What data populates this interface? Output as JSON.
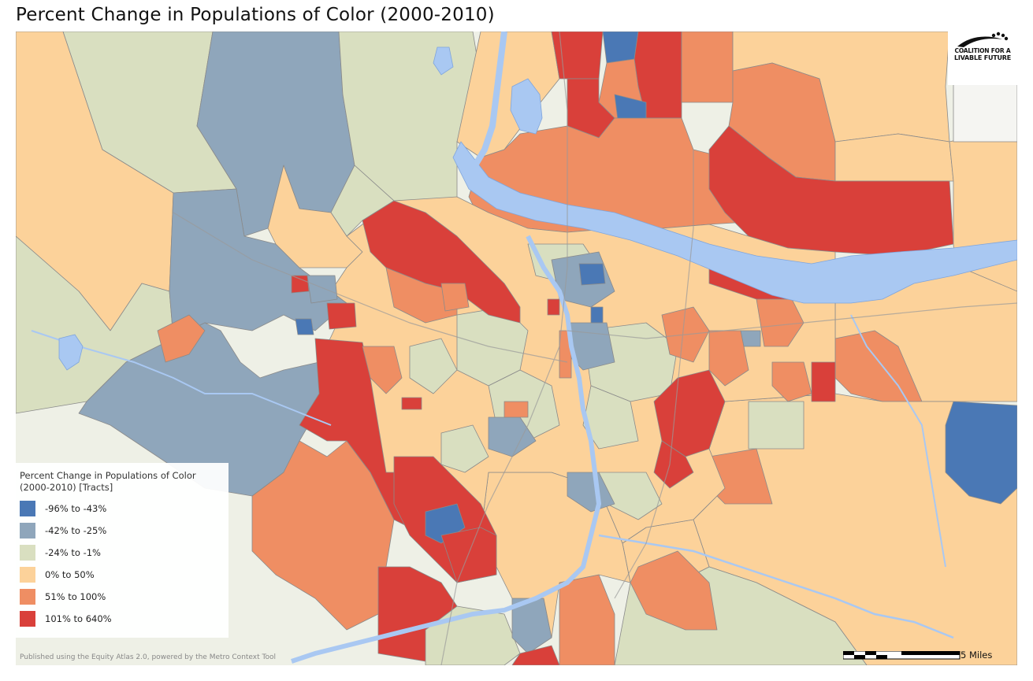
{
  "title": "Percent Change in Populations of Color (2000-2010)",
  "logo": {
    "line1": "COALITION FOR A",
    "line2": "LIVABLE FUTURE"
  },
  "legend": {
    "title": "Percent Change in Populations of Color (2000-2010) [Tracts]",
    "items": [
      {
        "label": "-96% to -43%",
        "color": "#4a78b5"
      },
      {
        "label": "-42% to -25%",
        "color": "#8fa6bb"
      },
      {
        "label": "-24% to -1%",
        "color": "#d9dfc0"
      },
      {
        "label": "0% to 50%",
        "color": "#fcd29a"
      },
      {
        "label": "51% to 100%",
        "color": "#ef8e63"
      },
      {
        "label": "101% to 640%",
        "color": "#d9403a"
      }
    ]
  },
  "attribution": "Published using the Equity Atlas 2.0, powered by the Metro Context Tool",
  "scale": {
    "label": "5 Miles"
  },
  "colors": {
    "water": "#a9c8f2",
    "basemap": "#eef0e6",
    "boundary": "#8a8a8a"
  }
}
